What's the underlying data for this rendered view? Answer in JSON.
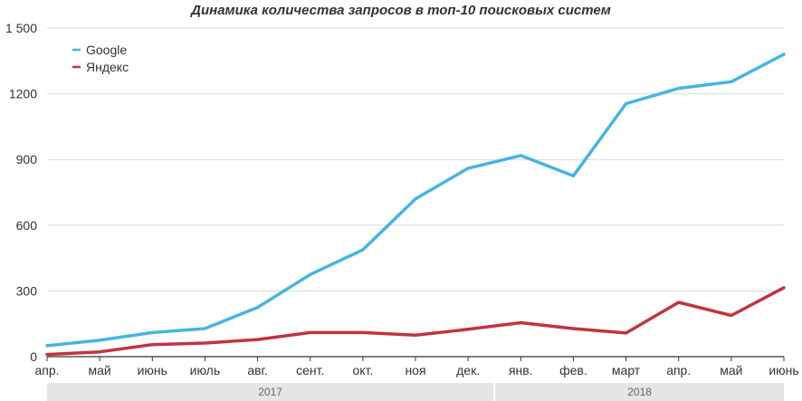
{
  "chart_data": {
    "type": "line",
    "title": "Динамика количества запросов в топ-10 поисковых систем",
    "x": [
      "апр.",
      "май",
      "июнь",
      "июль",
      "авг.",
      "сент.",
      "окт.",
      "ноя",
      "дек.",
      "янв.",
      "фев.",
      "март",
      "апр.",
      "май",
      "июнь"
    ],
    "series": [
      {
        "name": "Google",
        "color": "#45b5e0",
        "values": [
          50,
          75,
          110,
          128,
          225,
          375,
          488,
          720,
          860,
          918,
          825,
          1155,
          1225,
          1255,
          1380
        ]
      },
      {
        "name": "Яндекс",
        "color": "#c0343f",
        "values": [
          10,
          22,
          55,
          62,
          78,
          110,
          110,
          98,
          125,
          155,
          128,
          108,
          248,
          188,
          315
        ]
      }
    ],
    "ylim": [
      0,
      1500
    ],
    "yticks": [
      0,
      300,
      600,
      900,
      1200,
      1500
    ],
    "ytick_labels": [
      "0",
      "300",
      "600",
      "900",
      "1200",
      "1 500"
    ],
    "grid": true,
    "legend": "top-left",
    "years": [
      {
        "label": "2017",
        "from": 0,
        "to": 8
      },
      {
        "label": "2018",
        "from": 9,
        "to": 14
      }
    ]
  }
}
